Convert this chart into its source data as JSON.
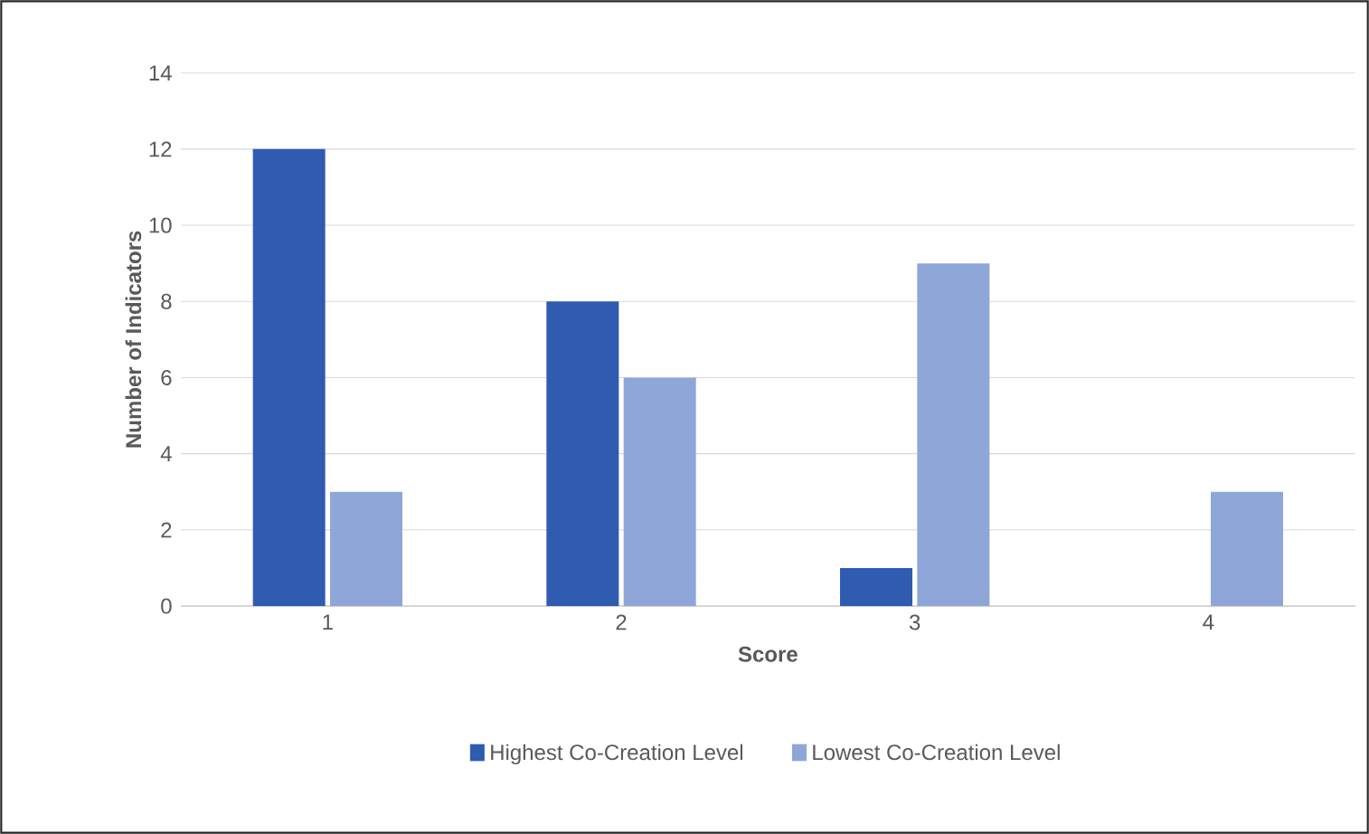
{
  "chart_data": {
    "type": "bar",
    "xlabel": "Score",
    "ylabel": "Number of Indicators",
    "categories": [
      "1",
      "2",
      "3",
      "4"
    ],
    "series": [
      {
        "name": "Highest Co-Creation Level",
        "color": "#2f5bb0",
        "values": [
          12,
          8,
          1,
          0
        ]
      },
      {
        "name": "Lowest Co-Creation Level",
        "color": "#8ea6d8",
        "values": [
          3,
          6,
          9,
          3
        ]
      }
    ],
    "ylim": [
      0,
      14
    ],
    "yticks": [
      0,
      2,
      4,
      6,
      8,
      10,
      12,
      14
    ],
    "grid": "y",
    "legend": "bottom"
  }
}
